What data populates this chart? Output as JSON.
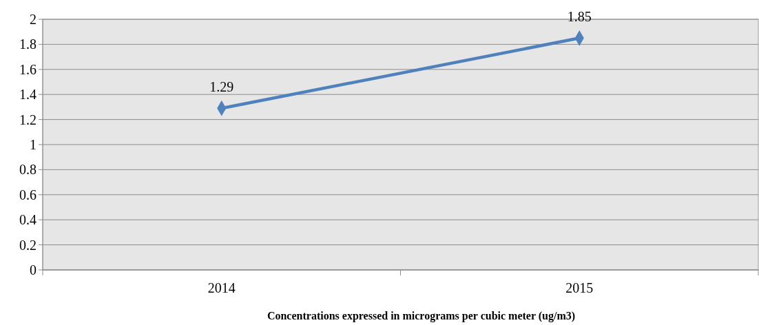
{
  "chart_data": {
    "type": "line",
    "xlabel": "Concentrations expressed in micrograms per cubic meter (ug/m3)",
    "categories": [
      "2014",
      "2015"
    ],
    "series": [
      {
        "color": "#4f81bd",
        "values": [
          1.29,
          1.85
        ]
      }
    ],
    "ylim": [
      0,
      2
    ],
    "yticks": [
      0,
      0.2,
      0.4,
      0.6,
      0.8,
      1,
      1.2,
      1.4,
      1.6,
      1.8,
      2
    ],
    "grid": "y",
    "marker": "diamond",
    "line_style": "solid",
    "data_labels": true
  }
}
